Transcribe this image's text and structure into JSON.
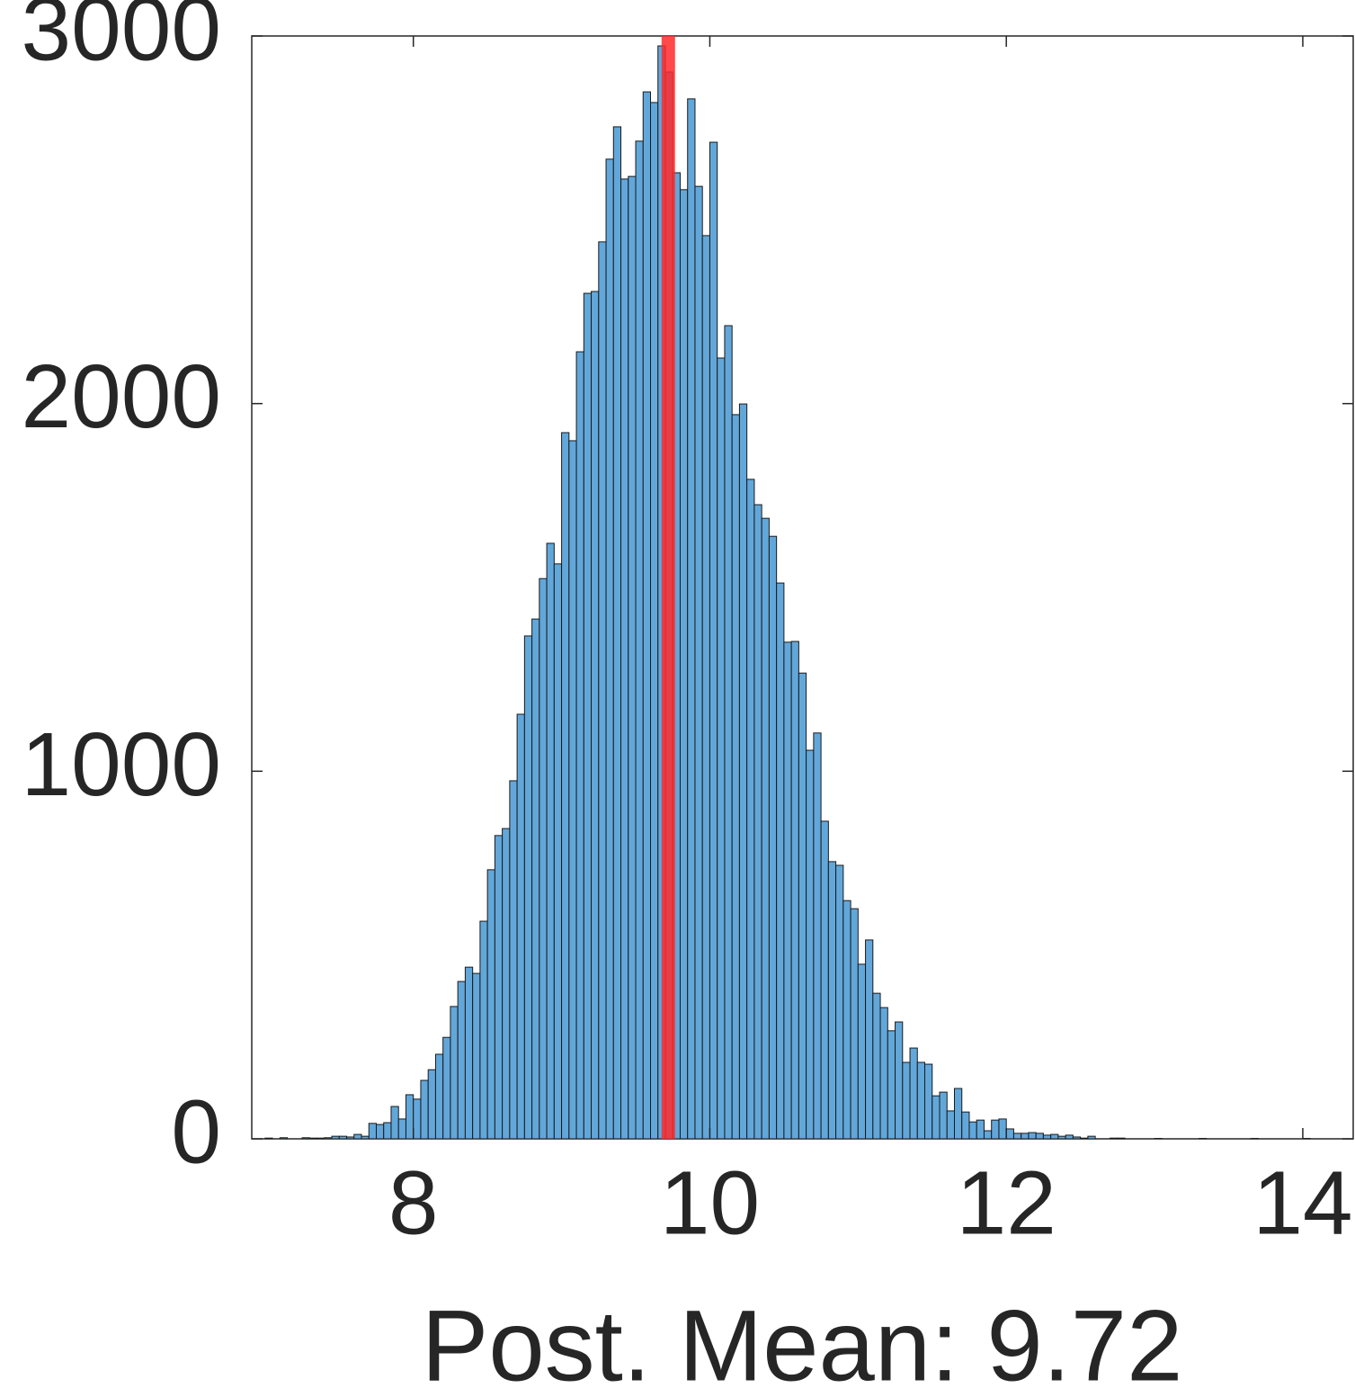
{
  "chart_data": {
    "type": "histogram",
    "xlabel": "Post. Mean: 9.72",
    "bins": [
      6.95,
      7,
      7.05,
      7.1,
      7.15,
      7.2,
      7.25,
      7.3,
      7.35,
      7.4,
      7.45,
      7.5,
      7.55,
      7.6,
      7.65,
      7.7,
      7.75,
      7.8,
      7.85,
      7.9,
      7.95,
      8,
      8.05,
      8.1,
      8.15,
      8.2,
      8.25,
      8.3,
      8.35,
      8.4,
      8.45,
      8.5,
      8.55,
      8.6,
      8.65,
      8.7,
      8.75,
      8.8,
      8.85,
      8.9,
      8.95,
      9,
      9.05,
      9.1,
      9.15,
      9.2,
      9.25,
      9.3,
      9.35,
      9.4,
      9.45,
      9.5,
      9.55,
      9.6,
      9.65,
      9.7,
      9.75,
      9.8,
      9.85,
      9.9,
      9.95,
      10,
      10.05,
      10.1,
      10.15,
      10.2,
      10.25,
      10.3,
      10.35,
      10.4,
      10.45,
      10.5,
      10.55,
      10.6,
      10.65,
      10.7,
      10.75,
      10.8,
      10.85,
      10.9,
      10.95,
      11,
      11.05,
      11.1,
      11.15,
      11.2,
      11.25,
      11.3,
      11.35,
      11.4,
      11.45,
      11.5,
      11.55,
      11.6,
      11.65,
      11.7,
      11.75,
      11.8,
      11.85,
      11.9,
      11.95,
      12,
      12.05,
      12.1,
      12.15,
      12.2,
      12.25,
      12.3,
      12.35,
      12.4,
      12.45,
      12.5,
      12.55,
      12.6,
      12.65,
      12.7,
      12.75,
      12.8,
      12.85,
      12.9,
      12.95,
      13,
      13.05,
      13.1,
      13.15,
      13.2,
      13.25,
      13.3,
      13.35,
      13.4,
      13.45,
      13.5,
      13.55,
      13.6,
      13.65,
      13.7,
      13.75,
      13.8,
      13.85,
      13.9,
      13.95,
      14,
      14.05,
      14.1
    ],
    "values": [
      0,
      2,
      0,
      3,
      0,
      0,
      3,
      2,
      2,
      3,
      7,
      7,
      5,
      12,
      7,
      42,
      39,
      44,
      88,
      54,
      120,
      108,
      159,
      188,
      230,
      276,
      360,
      428,
      467,
      450,
      592,
      732,
      825,
      844,
      974,
      1155,
      1368,
      1414,
      1524,
      1620,
      1564,
      1921,
      1899,
      2141,
      2300,
      2305,
      2440,
      2665,
      2753,
      2611,
      2618,
      2714,
      2848,
      2819,
      2973,
      2902,
      2628,
      2582,
      2829,
      2591,
      2457,
      2711,
      2124,
      2212,
      1970,
      1999,
      1794,
      1725,
      1688,
      1639,
      1512,
      1351,
      1353,
      1267,
      1057,
      1104,
      864,
      754,
      744,
      648,
      626,
      475,
      541,
      396,
      357,
      294,
      318,
      208,
      247,
      208,
      203,
      117,
      127,
      76,
      137,
      73,
      46,
      51,
      22,
      51,
      54,
      27,
      15,
      15,
      17,
      15,
      10,
      12,
      7,
      10,
      5,
      2,
      7,
      0,
      0,
      2,
      2,
      0,
      0,
      0,
      0,
      1,
      0,
      0,
      0,
      0,
      0,
      1,
      0,
      0,
      0,
      0,
      0,
      0,
      1,
      0,
      0,
      0,
      0,
      0,
      0,
      1,
      0
    ],
    "color": "#62a7da",
    "edgecolor": "#1a1a1a",
    "vline": 9.72,
    "vline_color": "#ff2a2a",
    "xlim": [
      6.91,
      14.34
    ],
    "xticks": [
      8,
      10,
      12,
      14
    ],
    "ylim": [
      0,
      3000
    ],
    "yticks": [
      0,
      1000,
      2000,
      3000
    ]
  }
}
